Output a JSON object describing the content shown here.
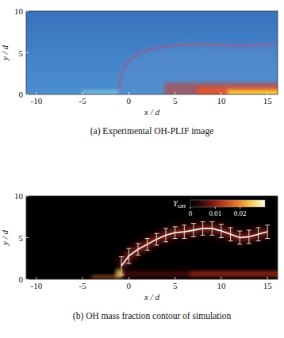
{
  "chart_data": [
    {
      "type": "image",
      "title": "(a) Experimental OH-PLIF image",
      "x_label": "x / d",
      "y_label": "y / d",
      "xlim": [
        -11.1,
        16.1
      ],
      "ylim": [
        0,
        10
      ],
      "xticks": [
        -10,
        -5,
        0,
        5,
        10,
        15
      ],
      "yticks": [
        0,
        5,
        10
      ]
    },
    {
      "type": "line",
      "title": "(b) OH mass fraction contour of simulation",
      "x_label": "x / d",
      "y_label": "y / d",
      "xlim": [
        -11.1,
        16.1
      ],
      "ylim": [
        0,
        10
      ],
      "xticks": [
        -10,
        -5,
        0,
        5,
        10,
        15
      ],
      "yticks": [
        0,
        5,
        10
      ],
      "x": [
        -0.8,
        0,
        1,
        2,
        3,
        4,
        5,
        6,
        7,
        8,
        9,
        10,
        11,
        12,
        13,
        14,
        15
      ],
      "values": [
        1.6,
        2.8,
        3.6,
        4.2,
        4.8,
        5.3,
        5.6,
        5.7,
        5.9,
        6.1,
        6.1,
        5.8,
        5.4,
        5.0,
        5.1,
        5.4,
        5.7
      ],
      "errors": [
        1.1,
        0.9,
        0.7,
        0.7,
        0.7,
        0.8,
        0.7,
        0.8,
        0.8,
        0.8,
        0.8,
        0.8,
        0.8,
        0.8,
        0.8,
        0.8,
        0.8
      ],
      "color": "#ffffff",
      "colorbar": {
        "label": "Y",
        "label_subscript": "OH",
        "range": [
          0,
          0.03
        ],
        "ticks": [
          0,
          0.01,
          0.02
        ],
        "colors": [
          "#000000",
          "#4a0c0c",
          "#a8301a",
          "#e0702a",
          "#f5c452",
          "#ffffe0"
        ]
      }
    }
  ]
}
